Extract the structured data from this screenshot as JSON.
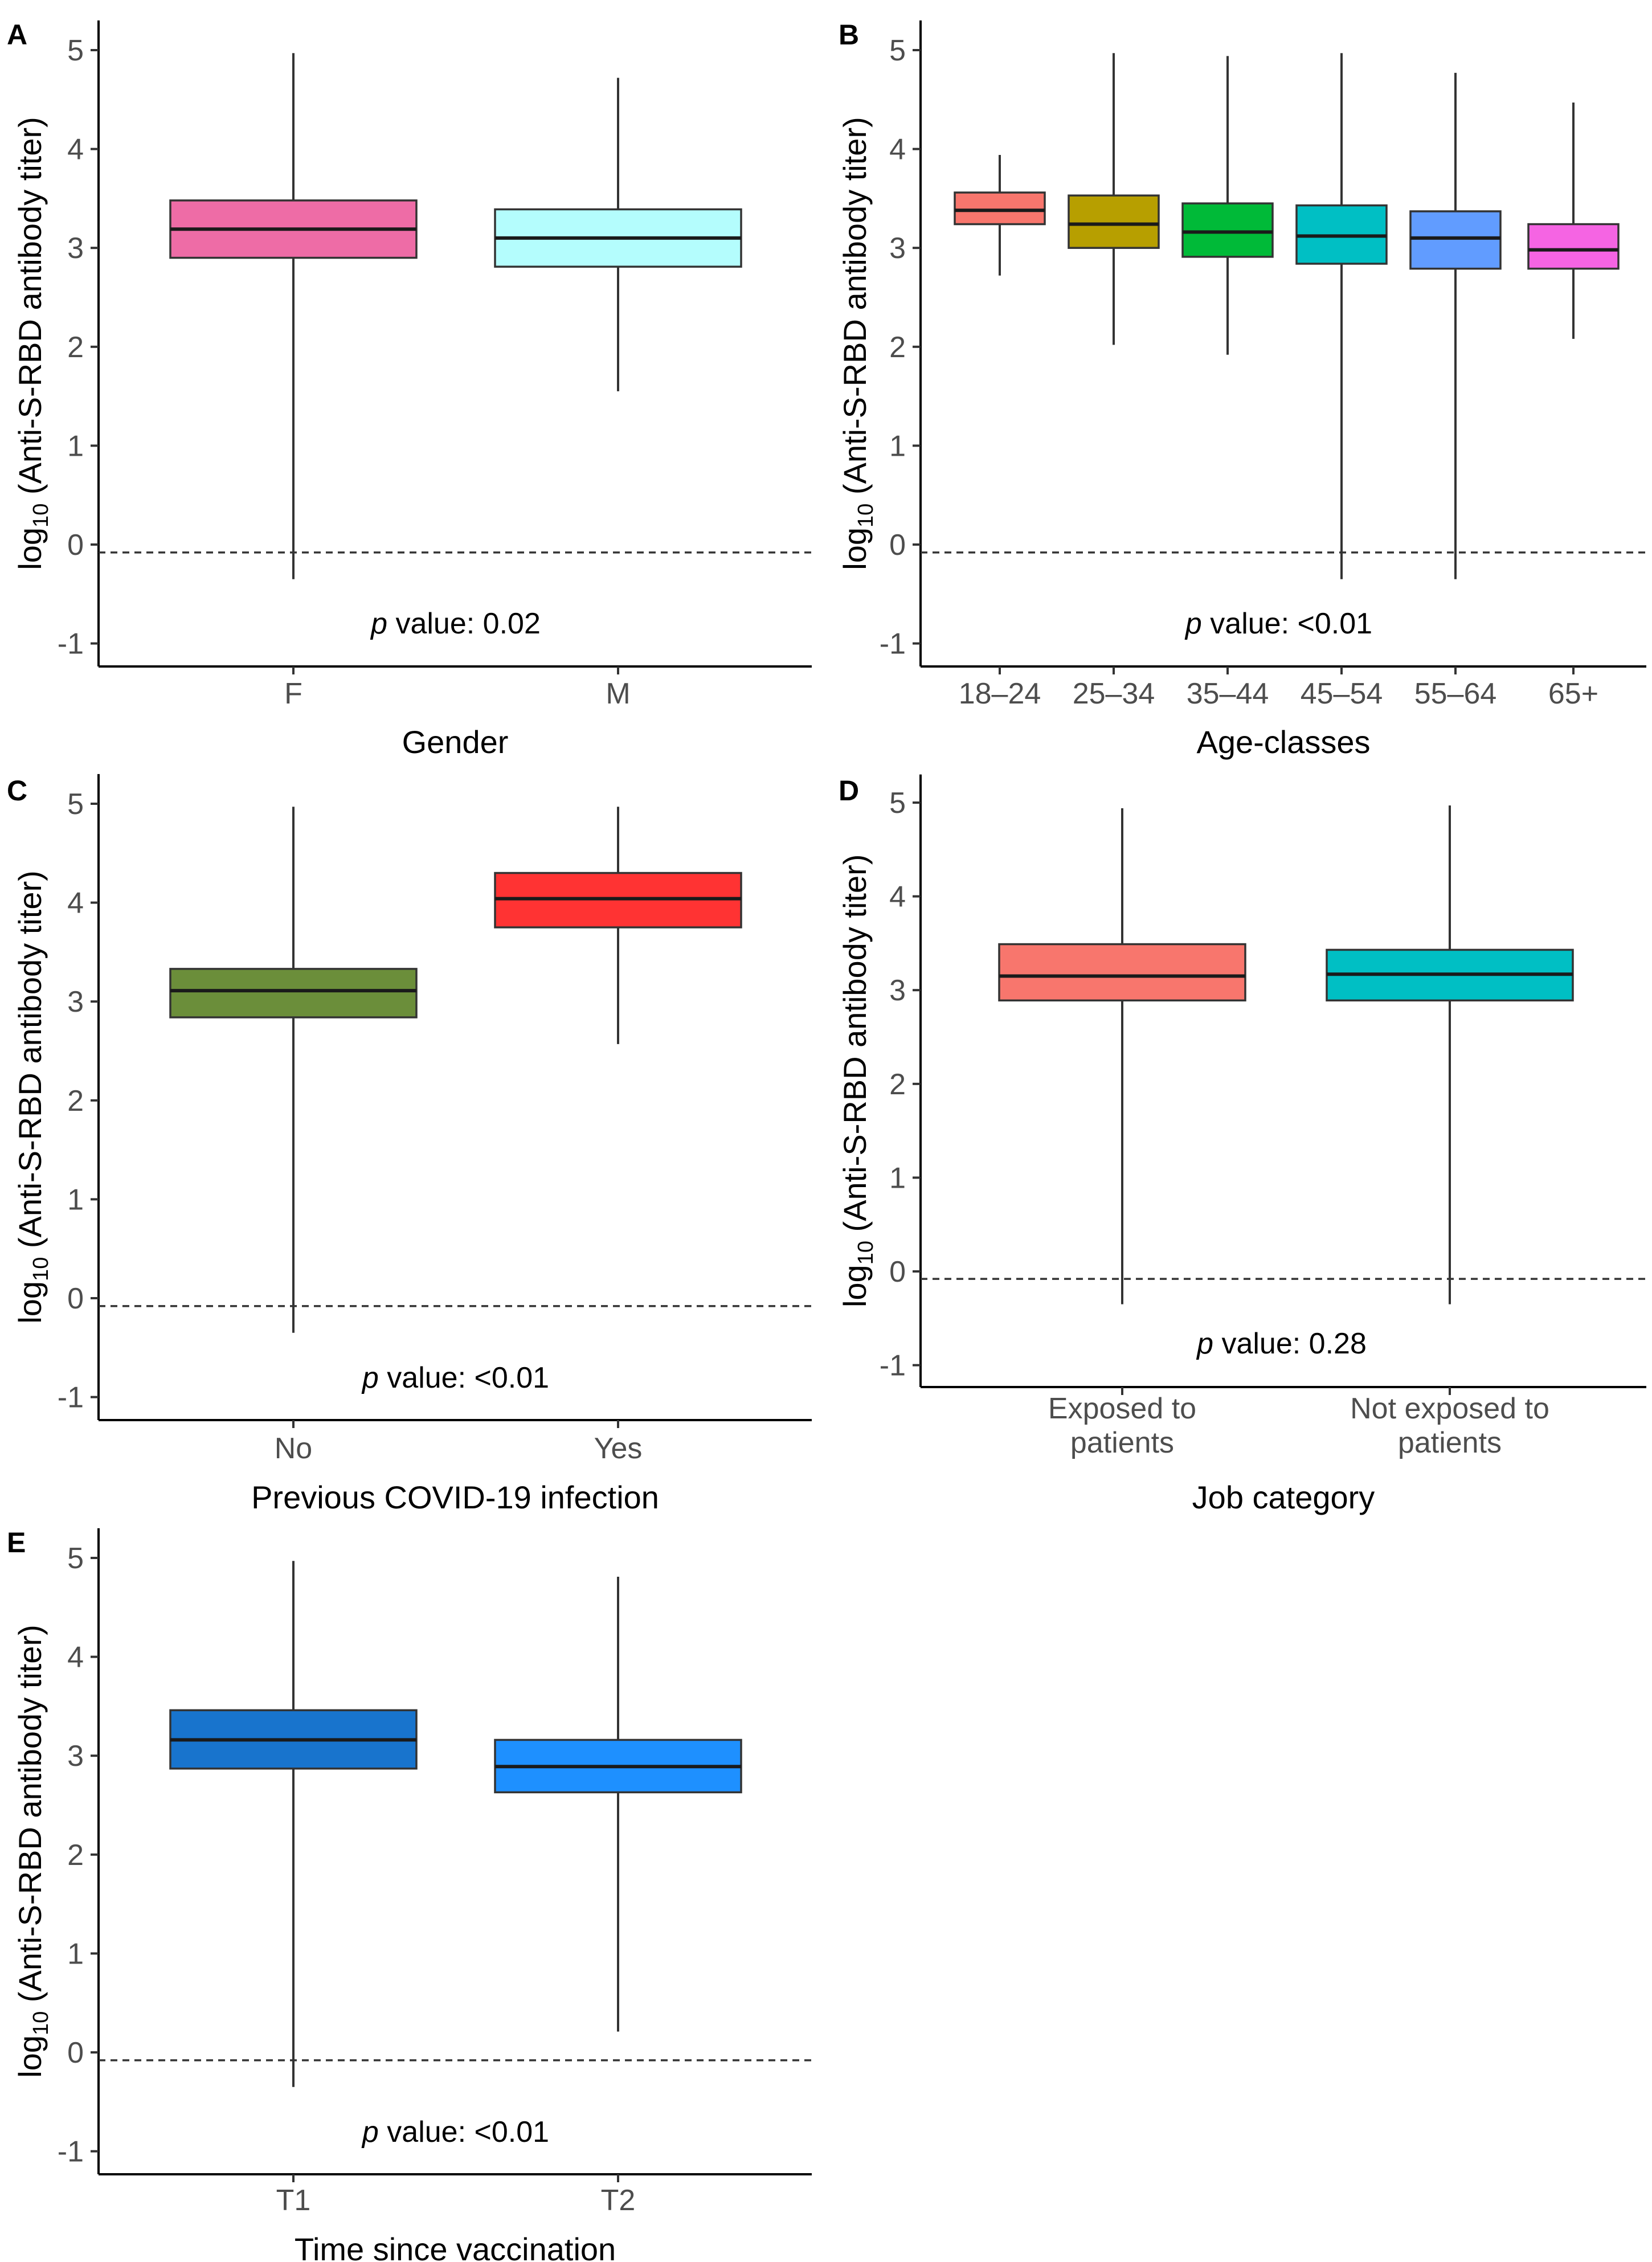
{
  "ylabel_prefix": "log",
  "ylabel_sub": "10",
  "ylabel_rest": " (Anti-S-RBD antibody titer)",
  "yticks": [
    "5",
    "4",
    "3",
    "2",
    "1",
    "0",
    "-1"
  ],
  "pvalue_italic": "p",
  "pvalue_word": " value",
  "colors": {
    "axis": "#000000",
    "whisker": "#333333",
    "median": "#1a1a1a"
  },
  "chart_data": [
    {
      "panel": "A",
      "type": "box",
      "xlabel": "Gender",
      "ylim": [
        -1.2,
        5.3
      ],
      "cutoff": -0.08,
      "pvalue": ": 0.02",
      "categories": [
        "F",
        "M"
      ],
      "boxes": [
        {
          "label": "F",
          "min": -0.35,
          "q1": 2.9,
          "median": 3.19,
          "q3": 3.48,
          "max": 4.97,
          "color": "#EE6CA6"
        },
        {
          "label": "M",
          "min": 1.55,
          "q1": 2.81,
          "median": 3.1,
          "q3": 3.39,
          "max": 4.72,
          "color": "#B4FDFD"
        }
      ]
    },
    {
      "panel": "B",
      "type": "box",
      "xlabel": "Age-classes",
      "ylim": [
        -1.2,
        5.3
      ],
      "cutoff": -0.08,
      "pvalue": ": <0.01",
      "categories": [
        "18–24",
        "25–34",
        "35–44",
        "45–54",
        "55–64",
        "65+"
      ],
      "boxes": [
        {
          "label": "18–24",
          "min": 2.72,
          "q1": 3.24,
          "median": 3.38,
          "q3": 3.56,
          "max": 3.94,
          "color": "#F8766D"
        },
        {
          "label": "25–34",
          "min": 2.02,
          "q1": 3.0,
          "median": 3.24,
          "q3": 3.53,
          "max": 4.97,
          "color": "#B79F00"
        },
        {
          "label": "35–44",
          "min": 1.92,
          "q1": 2.91,
          "median": 3.16,
          "q3": 3.45,
          "max": 4.94,
          "color": "#00BA38"
        },
        {
          "label": "45–54",
          "min": -0.35,
          "q1": 2.84,
          "median": 3.12,
          "q3": 3.43,
          "max": 4.97,
          "color": "#00BFC4"
        },
        {
          "label": "55–64",
          "min": -0.35,
          "q1": 2.79,
          "median": 3.1,
          "q3": 3.37,
          "max": 4.77,
          "color": "#619CFF"
        },
        {
          "label": "65+",
          "min": 2.08,
          "q1": 2.79,
          "median": 2.98,
          "q3": 3.24,
          "max": 4.47,
          "color": "#F564E3"
        }
      ]
    },
    {
      "panel": "C",
      "type": "box",
      "xlabel": "Previous COVID-19 infection",
      "ylim": [
        -1.2,
        5.3
      ],
      "cutoff": -0.08,
      "pvalue": ": <0.01",
      "categories": [
        "No",
        "Yes"
      ],
      "boxes": [
        {
          "label": "No",
          "min": -0.35,
          "q1": 2.84,
          "median": 3.11,
          "q3": 3.33,
          "max": 4.97,
          "color": "#6B8E3A"
        },
        {
          "label": "Yes",
          "min": 2.57,
          "q1": 3.75,
          "median": 4.04,
          "q3": 4.3,
          "max": 4.97,
          "color": "#FF3333"
        }
      ]
    },
    {
      "panel": "D",
      "type": "box",
      "xlabel": "Job category",
      "ylim": [
        -1.2,
        5.3
      ],
      "cutoff": -0.08,
      "pvalue": ": 0.28",
      "categories": [
        "Exposed to|patients",
        "Not exposed to|patients"
      ],
      "boxes": [
        {
          "label": "Exposed to patients",
          "min": -0.35,
          "q1": 2.89,
          "median": 3.15,
          "q3": 3.49,
          "max": 4.94,
          "color": "#F8766D"
        },
        {
          "label": "Not exposed to patients",
          "min": -0.35,
          "q1": 2.89,
          "median": 3.17,
          "q3": 3.43,
          "max": 4.97,
          "color": "#00BFC4"
        }
      ]
    },
    {
      "panel": "E",
      "type": "box",
      "xlabel": "Time since vaccination",
      "ylim": [
        -1.2,
        5.3
      ],
      "cutoff": -0.08,
      "pvalue": ": <0.01",
      "categories": [
        "T1",
        "T2"
      ],
      "boxes": [
        {
          "label": "T1",
          "min": -0.35,
          "q1": 2.87,
          "median": 3.16,
          "q3": 3.46,
          "max": 4.97,
          "color": "#1874CD"
        },
        {
          "label": "T2",
          "min": 0.21,
          "q1": 2.63,
          "median": 2.89,
          "q3": 3.16,
          "max": 4.81,
          "color": "#1E90FF"
        }
      ]
    }
  ]
}
